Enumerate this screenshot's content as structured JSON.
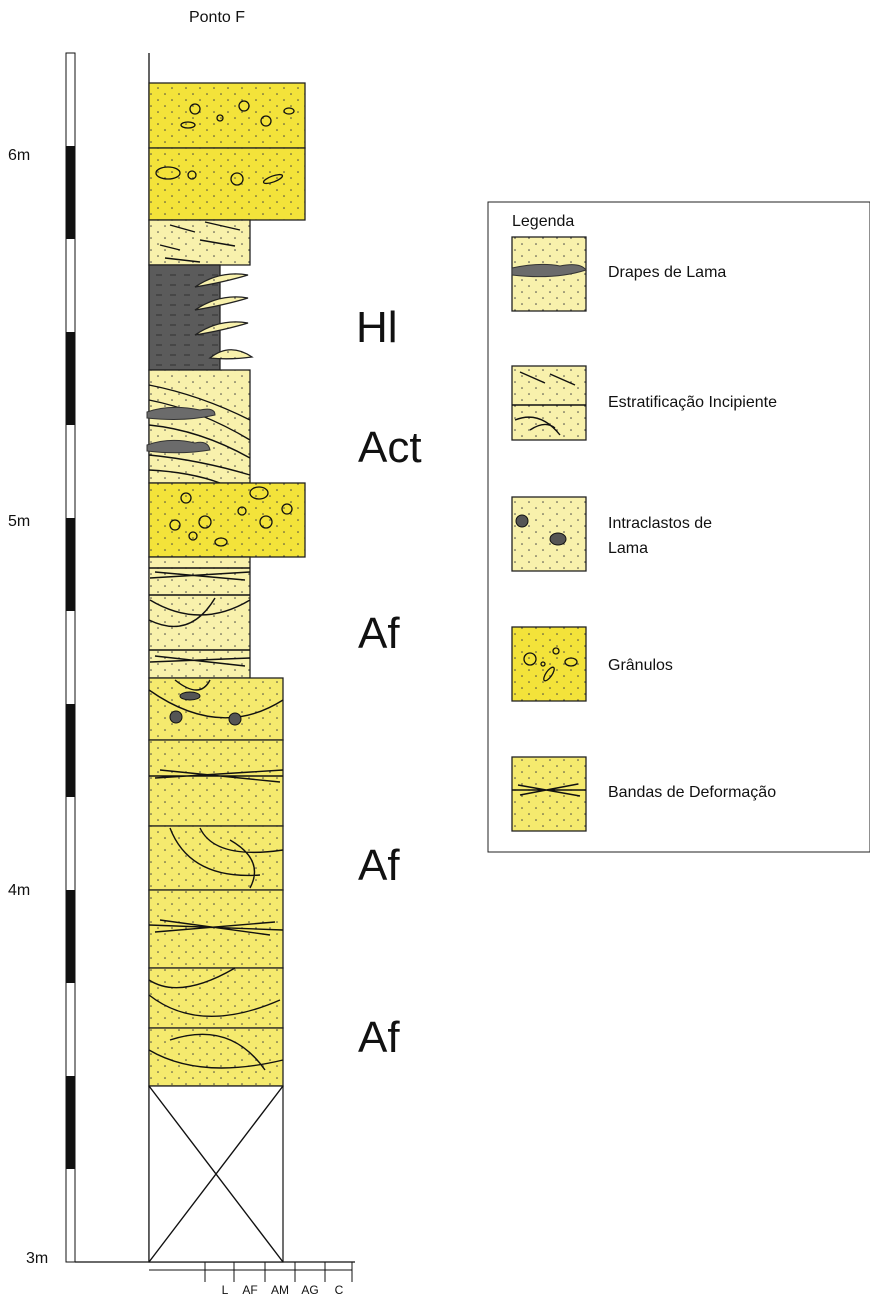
{
  "title": "Ponto F",
  "scale_labels": [
    "6m",
    "5m",
    "4m",
    "3m"
  ],
  "facies_labels": [
    "Hl",
    "Act",
    "Af",
    "Af",
    "Af"
  ],
  "grain_size_labels": [
    "L",
    "AF",
    "AM",
    "AG",
    "C"
  ],
  "legend": {
    "title": "Legenda",
    "items": [
      {
        "lines": [
          "Drapes de Lama"
        ]
      },
      {
        "lines": [
          "Estratificação Incipiente"
        ]
      },
      {
        "lines": [
          "Intraclastos de",
          "Lama"
        ]
      },
      {
        "lines": [
          "Grânulos"
        ]
      },
      {
        "lines": [
          "Bandas de Deformação"
        ]
      }
    ]
  }
}
